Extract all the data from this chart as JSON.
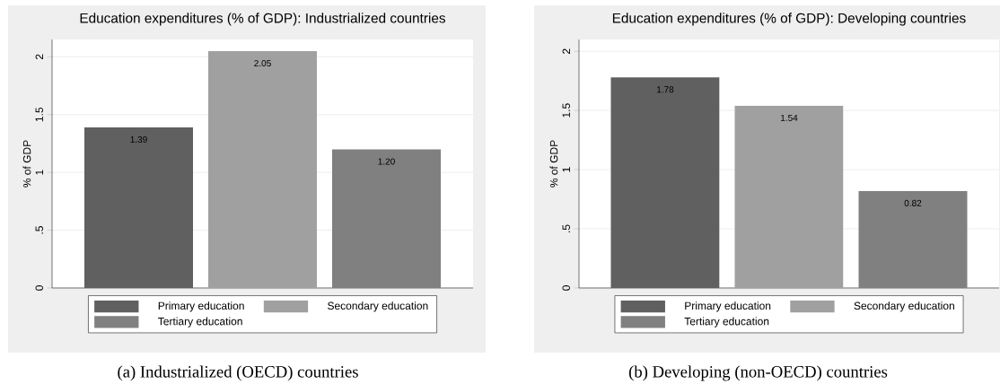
{
  "chart_data": [
    {
      "type": "bar",
      "title": "Education expenditures (% of GDP): Industrialized countries",
      "ylabel": "% of GDP",
      "categories": [
        null
      ],
      "series": [
        {
          "name": "Primary education",
          "color": "#606060",
          "values": [
            1.39
          ],
          "value_labels": [
            "1.39"
          ]
        },
        {
          "name": "Secondary education",
          "color": "#a0a0a0",
          "values": [
            2.05
          ],
          "value_labels": [
            "2.05"
          ]
        },
        {
          "name": "Tertiary education",
          "color": "#808080",
          "values": [
            1.2
          ],
          "value_labels": [
            "1.20"
          ]
        }
      ],
      "ylim": [
        0,
        2.15
      ],
      "yticks": [
        0,
        {
          "value": 0.5,
          "label": ".5"
        },
        1,
        1.5,
        2
      ],
      "grid": "y",
      "legend": "bottom",
      "tick_labels": "y",
      "annotations": [
        "(a) Industrialized (OECD) countries"
      ]
    },
    {
      "type": "bar",
      "title": "Education expenditures (% of GDP): Developing countries",
      "ylabel": "% of GDP",
      "categories": [
        null
      ],
      "series": [
        {
          "name": "Primary education",
          "color": "#606060",
          "values": [
            1.78
          ],
          "value_labels": [
            "1.78"
          ]
        },
        {
          "name": "Secondary education",
          "color": "#a0a0a0",
          "values": [
            1.54
          ],
          "value_labels": [
            "1.54"
          ]
        },
        {
          "name": "Tertiary education",
          "color": "#808080",
          "values": [
            0.82
          ],
          "value_labels": [
            "0.82"
          ]
        }
      ],
      "ylim": [
        0,
        2.1
      ],
      "yticks": [
        0,
        {
          "value": 0.5,
          "label": ".5"
        },
        1,
        1.5,
        2
      ],
      "grid": "y",
      "legend": "bottom",
      "tick_labels": "y",
      "annotations": [
        "(b) Developing (non-OECD) countries"
      ]
    }
  ]
}
